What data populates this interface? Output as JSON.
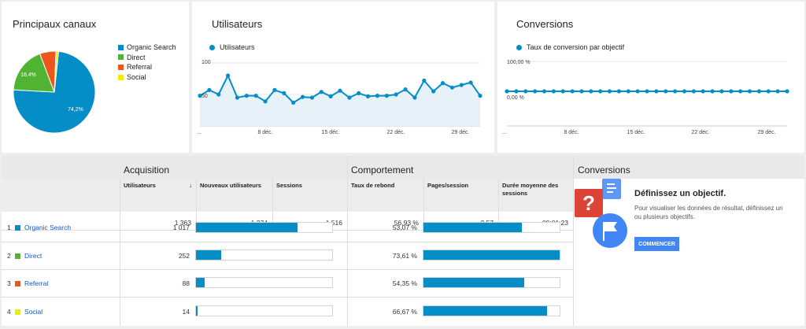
{
  "canaux": {
    "title": "Principaux canaux",
    "legend": [
      {
        "label": "Organic Search",
        "color": "#058dc7"
      },
      {
        "label": "Direct",
        "color": "#50b432"
      },
      {
        "label": "Referral",
        "color": "#ed561b"
      },
      {
        "label": "Social",
        "color": "#edef00"
      }
    ],
    "pie_labels": {
      "organic": "74,2%",
      "direct": "18,4%"
    }
  },
  "users": {
    "title": "Utilisateurs",
    "legend": "Utilisateurs",
    "y_top": "100",
    "y_mid": "50",
    "x_ticks": [
      "...",
      "8 déc.",
      "15 déc.",
      "22 déc.",
      "29 déc."
    ]
  },
  "conv": {
    "title": "Conversions",
    "legend": "Taux de conversion par objectif",
    "y_top": "100,00 %",
    "y_zero": "0,00 %",
    "x_ticks": [
      "...",
      "8 déc.",
      "15 déc.",
      "22 déc.",
      "29 déc."
    ]
  },
  "chart_data": [
    {
      "type": "pie",
      "title": "Principaux canaux",
      "categories": [
        "Organic Search",
        "Direct",
        "Referral",
        "Social"
      ],
      "values": [
        74.2,
        18.4,
        6.4,
        1.0
      ]
    },
    {
      "type": "area",
      "title": "Utilisateurs",
      "series": [
        {
          "name": "Utilisateurs",
          "values": [
            48,
            57,
            50,
            80,
            45,
            48,
            48,
            39,
            57,
            52,
            37,
            46,
            45,
            54,
            47,
            56,
            45,
            52,
            47,
            48,
            48,
            50,
            58,
            45,
            72,
            55,
            68,
            61,
            65,
            69,
            48
          ]
        }
      ],
      "ylim": [
        0,
        100
      ]
    },
    {
      "type": "line",
      "title": "Conversions",
      "series": [
        {
          "name": "Taux de conversion par objectif",
          "values": [
            0,
            0,
            0,
            0,
            0,
            0,
            0,
            0,
            0,
            0,
            0,
            0,
            0,
            0,
            0,
            0,
            0,
            0,
            0,
            0,
            0,
            0,
            0,
            0,
            0,
            0,
            0,
            0,
            0,
            0,
            0
          ]
        }
      ],
      "ylim": [
        0,
        100
      ]
    }
  ],
  "table": {
    "groups": {
      "acquisition": "Acquisition",
      "comportement": "Comportement",
      "conversions": "Conversions"
    },
    "headers": {
      "utilisateurs": "Utilisateurs",
      "nouveaux": "Nouveaux utilisateurs",
      "sessions": "Sessions",
      "rebond": "Taux de rebond",
      "pages": "Pages/session",
      "duree": "Durée moyenne des sessions"
    },
    "sort_icon": "↓",
    "totals": {
      "utilisateurs": "1 363",
      "nouveaux": "1 274",
      "sessions": "1 516",
      "rebond": "56,93 %",
      "pages": "2,57",
      "duree": "00:01:23"
    },
    "rows": [
      {
        "num": "1",
        "label": "Organic Search",
        "color": "#058dc7",
        "utilisateurs": "1 017",
        "users_frac": 0.746,
        "rebond": "53,07 %",
        "rebond_frac": 0.721
      },
      {
        "num": "2",
        "label": "Direct",
        "color": "#50b432",
        "utilisateurs": "252",
        "users_frac": 0.185,
        "rebond": "73,61 %",
        "rebond_frac": 1.0
      },
      {
        "num": "3",
        "label": "Referral",
        "color": "#ed561b",
        "utilisateurs": "88",
        "users_frac": 0.065,
        "rebond": "54,35 %",
        "rebond_frac": 0.738
      },
      {
        "num": "4",
        "label": "Social",
        "color": "#edef00",
        "utilisateurs": "14",
        "users_frac": 0.01,
        "rebond": "66,67 %",
        "rebond_frac": 0.906
      }
    ]
  },
  "cta": {
    "title": "Définissez un objectif.",
    "text": "Pour visualiser les données de résultat, définissez un ou plusieurs objectifs.",
    "button": "COMMENCER",
    "question_mark": "?"
  }
}
